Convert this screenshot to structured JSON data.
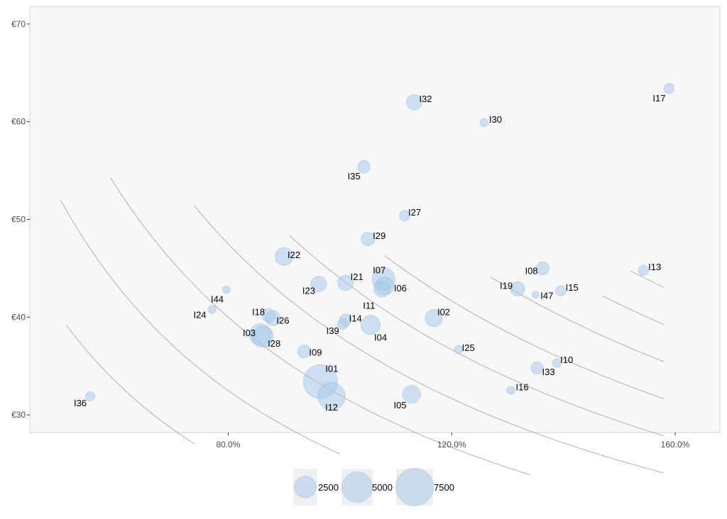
{
  "chart_data": {
    "type": "scatter",
    "title": "",
    "xlabel": "",
    "ylabel": "",
    "xlim": [
      0.445,
      1.68
    ],
    "ylim": [
      28.2,
      71.8
    ],
    "x_ticks": [
      0.8,
      1.2,
      1.6
    ],
    "x_tick_labels": [
      "80.0%",
      "120.0%",
      "160.0%"
    ],
    "y_ticks": [
      30,
      40,
      50,
      60,
      70
    ],
    "y_tick_labels": [
      "€30",
      "€40",
      "€50",
      "€60",
      "€70"
    ],
    "grid": false,
    "size_legend": {
      "position": "bottom",
      "values": [
        2500,
        5000,
        7500
      ],
      "labels": [
        "2500",
        "5000",
        "7500"
      ]
    },
    "colors": {
      "point_fill": "#a9cbea",
      "point_stroke": "#8bb6df",
      "panel_bg": "#f7f7f7",
      "panel_border": "#d3d3d3",
      "curve": "#a0a0a0",
      "tick_text": "#4d4d4d",
      "label_text": "#000000"
    },
    "iso_curves": [
      {
        "k": 20,
        "x_range": [
          0.51,
          0.74
        ]
      },
      {
        "k": 26,
        "x_range": [
          0.5,
          1.0
        ]
      },
      {
        "k": 32,
        "x_range": [
          0.59,
          1.34
        ]
      },
      {
        "k": 38,
        "x_range": [
          0.74,
          1.58
        ]
      },
      {
        "k": 44,
        "x_range": [
          0.91,
          1.58
        ]
      },
      {
        "k": 50,
        "x_range": [
          1.08,
          1.58
        ]
      },
      {
        "k": 56,
        "x_range": [
          1.27,
          1.58
        ]
      },
      {
        "k": 62,
        "x_range": [
          1.47,
          1.58
        ]
      },
      {
        "k": 68,
        "x_range": [
          1.52,
          1.58
        ]
      }
    ],
    "points": [
      {
        "label": "I01",
        "x": 0.965,
        "y": 33.4,
        "size": 6200
      },
      {
        "label": "I12",
        "x": 0.985,
        "y": 31.9,
        "size": 4000
      },
      {
        "label": "I02",
        "x": 1.168,
        "y": 39.9,
        "size": 1600
      },
      {
        "label": "I03",
        "x": 0.858,
        "y": 38.2,
        "size": 2600
      },
      {
        "label": "I28",
        "x": 0.862,
        "y": 38.0,
        "size": 2400
      },
      {
        "label": "I26",
        "x": 0.88,
        "y": 39.9,
        "size": 1200
      },
      {
        "label": "I18",
        "x": 0.872,
        "y": 40.2,
        "size": 1000
      },
      {
        "label": "I04",
        "x": 1.055,
        "y": 39.2,
        "size": 2000
      },
      {
        "label": "I05",
        "x": 1.128,
        "y": 32.1,
        "size": 1700
      },
      {
        "label": "I06",
        "x": 1.08,
        "y": 43.2,
        "size": 1800
      },
      {
        "label": "I07",
        "x": 1.078,
        "y": 43.9,
        "size": 2800
      },
      {
        "label": "I11",
        "x": 1.075,
        "y": 42.9,
        "size": 1400
      },
      {
        "label": "I08",
        "x": 1.363,
        "y": 45.0,
        "size": 900
      },
      {
        "label": "I09",
        "x": 0.936,
        "y": 36.5,
        "size": 900
      },
      {
        "label": "I10",
        "x": 1.388,
        "y": 35.3,
        "size": 400
      },
      {
        "label": "I13",
        "x": 1.543,
        "y": 44.8,
        "size": 550
      },
      {
        "label": "I14",
        "x": 1.01,
        "y": 39.7,
        "size": 800
      },
      {
        "label": "I39",
        "x": 1.005,
        "y": 39.3,
        "size": 600
      },
      {
        "label": "I15",
        "x": 1.395,
        "y": 42.7,
        "size": 550
      },
      {
        "label": "I16",
        "x": 1.306,
        "y": 32.5,
        "size": 350
      },
      {
        "label": "I17",
        "x": 1.589,
        "y": 63.4,
        "size": 550
      },
      {
        "label": "I19",
        "x": 1.318,
        "y": 42.9,
        "size": 1100
      },
      {
        "label": "I21",
        "x": 1.01,
        "y": 43.5,
        "size": 1300
      },
      {
        "label": "I22",
        "x": 0.9,
        "y": 46.2,
        "size": 1700
      },
      {
        "label": "I23",
        "x": 0.962,
        "y": 43.4,
        "size": 1300
      },
      {
        "label": "I24",
        "x": 0.771,
        "y": 40.8,
        "size": 350
      },
      {
        "label": "I25",
        "x": 1.212,
        "y": 36.7,
        "size": 350
      },
      {
        "label": "I27",
        "x": 1.116,
        "y": 50.4,
        "size": 600
      },
      {
        "label": "I29",
        "x": 1.05,
        "y": 48.0,
        "size": 1000
      },
      {
        "label": "I30",
        "x": 1.258,
        "y": 59.9,
        "size": 350
      },
      {
        "label": "I32",
        "x": 1.133,
        "y": 62.0,
        "size": 1300
      },
      {
        "label": "I33",
        "x": 1.353,
        "y": 34.8,
        "size": 800
      },
      {
        "label": "I35",
        "x": 1.043,
        "y": 55.4,
        "size": 850
      },
      {
        "label": "I36",
        "x": 0.553,
        "y": 31.9,
        "size": 450
      },
      {
        "label": "I44",
        "x": 0.797,
        "y": 42.8,
        "size": 300
      },
      {
        "label": "I47",
        "x": 1.35,
        "y": 42.3,
        "size": 250
      }
    ]
  }
}
